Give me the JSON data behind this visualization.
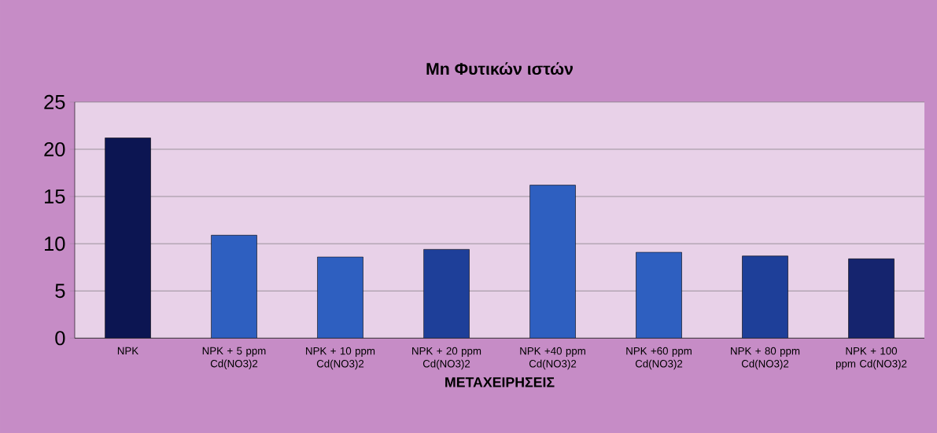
{
  "chart_data": {
    "type": "bar",
    "title": "Mn Φυτικών ιστών",
    "xlabel": "ΜΕΤΑΧΕΙΡΗΣΕΙΣ",
    "categories": [
      "NPK",
      "NPK + 5 ppm Cd(NO3)2",
      "NPK + 10 ppm Cd(NO3)2",
      "NPK + 20 ppm Cd(NO3)2",
      "NPK +40 ppm Cd(NO3)2",
      "NPK +60 ppm Cd(NO3)2",
      "NPK + 80 ppm Cd(NO3)2",
      "NPK + 100 ppm Cd(NO3)2"
    ],
    "values": [
      21.2,
      10.9,
      8.6,
      9.4,
      16.2,
      9.1,
      8.7,
      8.4
    ],
    "colors": [
      "#0c1552",
      "#2e5fc0",
      "#2e5fc0",
      "#1e3f99",
      "#2e5fc0",
      "#2e5fc0",
      "#1e3f99",
      "#15246e"
    ],
    "ylim": [
      0,
      25
    ],
    "yticks": [
      0,
      5,
      10,
      15,
      20,
      25
    ],
    "grid": "y"
  }
}
